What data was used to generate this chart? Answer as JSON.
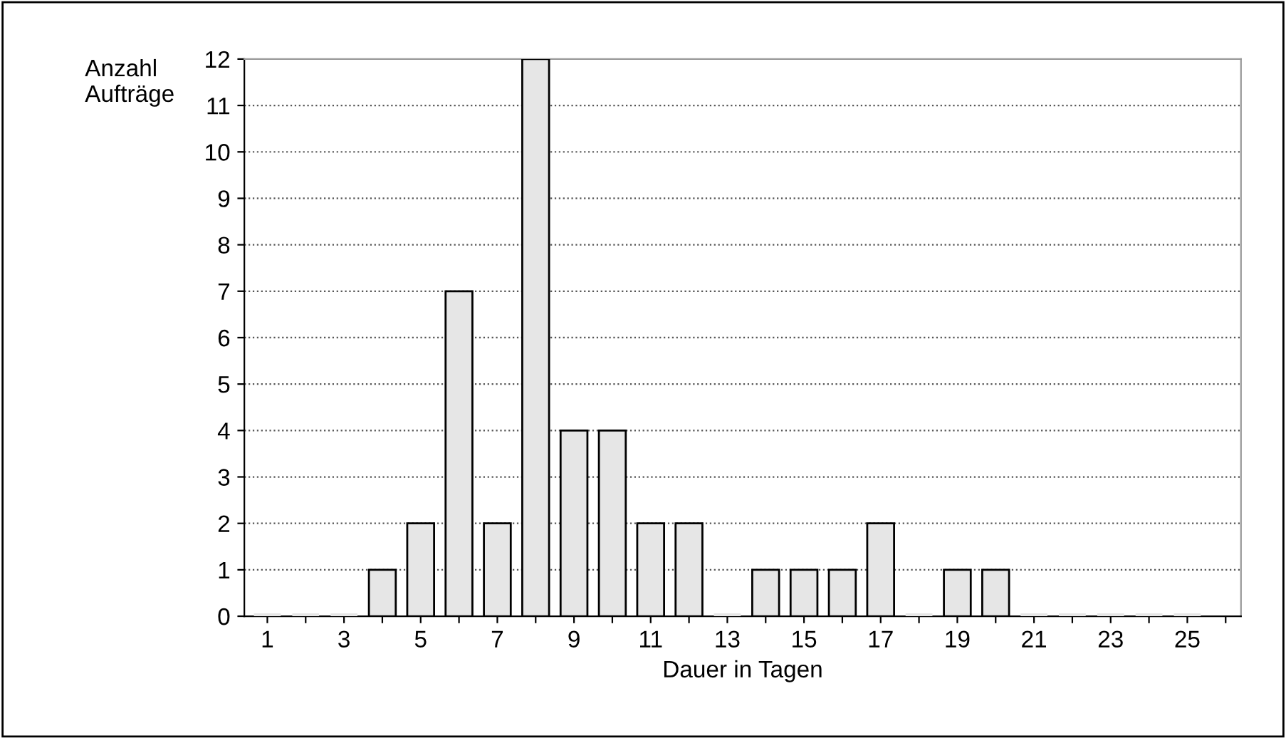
{
  "chart_data": {
    "type": "bar",
    "ylabel": "Anzahl\nAufträge",
    "xlabel": "Dauer in Tagen",
    "categories": [
      "1",
      null,
      "3",
      null,
      "5",
      null,
      "7",
      null,
      "9",
      null,
      "11",
      null,
      "13",
      null,
      "15",
      null,
      "17",
      null,
      "19",
      null,
      "21",
      null,
      "23",
      null,
      "25",
      null
    ],
    "values": [
      0,
      0,
      0,
      1,
      2,
      7,
      2,
      12,
      4,
      4,
      2,
      2,
      0,
      1,
      1,
      1,
      2,
      0,
      1,
      1,
      0,
      0,
      0,
      0,
      0,
      null
    ],
    "color": "#e6e6e6",
    "ylim": [
      0,
      12
    ],
    "yticks": [
      0,
      1,
      2,
      3,
      4,
      5,
      6,
      7,
      8,
      9,
      10,
      11,
      12
    ],
    "grid": "y"
  }
}
